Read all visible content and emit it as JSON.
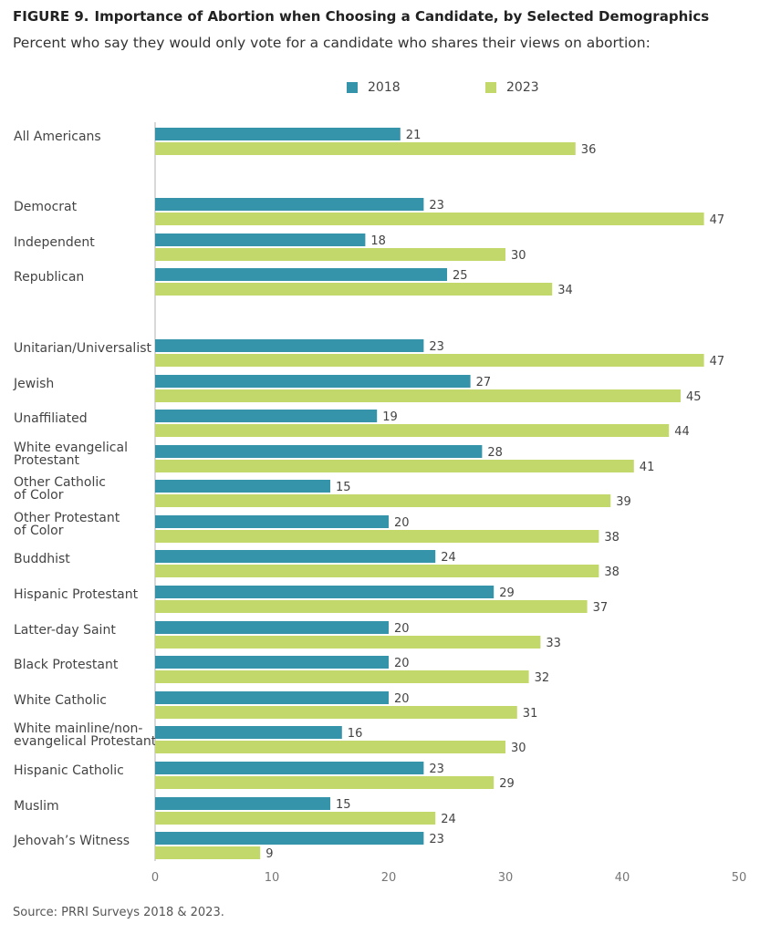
{
  "figure": {
    "label": "FIGURE 9.",
    "title": "Importance of Abortion when Choosing a Candidate, by Selected Demographics",
    "subtitle": "Percent who say they would only vote for a candidate who shares their views on abortion:",
    "source": "Source: PRRI Surveys 2018 & 2023."
  },
  "colors": {
    "s2018": "#3594aa",
    "s2023": "#c3d86b",
    "axis": "#cccccc",
    "label": "#444444",
    "tick": "#777777"
  },
  "chart_data": {
    "type": "bar",
    "orientation": "horizontal",
    "legend_position": "top-center",
    "grid": false,
    "xlim": [
      0,
      50
    ],
    "xticks": [
      0,
      10,
      20,
      30,
      40,
      50
    ],
    "categories": [
      [
        "All Americans"
      ],
      [
        "Democrat"
      ],
      [
        "Independent"
      ],
      [
        "Republican"
      ],
      [
        "Unitarian/Universalist"
      ],
      [
        "Jewish"
      ],
      [
        "Unaffiliated"
      ],
      [
        "White evangelical",
        "Protestant"
      ],
      [
        "Other Catholic",
        "of Color"
      ],
      [
        "Other Protestant",
        "of Color"
      ],
      [
        "Buddhist"
      ],
      [
        "Hispanic Protestant"
      ],
      [
        "Latter-day Saint"
      ],
      [
        "Black Protestant"
      ],
      [
        "White Catholic"
      ],
      [
        "White mainline/non-",
        "evangelical Protestant"
      ],
      [
        "Hispanic Catholic"
      ],
      [
        "Muslim"
      ],
      [
        "Jehovah’s Witness"
      ]
    ],
    "series": [
      {
        "name": "2018",
        "values": [
          21,
          23,
          18,
          25,
          23,
          27,
          19,
          28,
          15,
          20,
          24,
          29,
          20,
          20,
          20,
          16,
          23,
          15,
          23
        ]
      },
      {
        "name": "2023",
        "values": [
          36,
          47,
          30,
          34,
          47,
          45,
          44,
          41,
          39,
          38,
          38,
          37,
          33,
          32,
          31,
          30,
          29,
          24,
          9
        ]
      }
    ]
  }
}
